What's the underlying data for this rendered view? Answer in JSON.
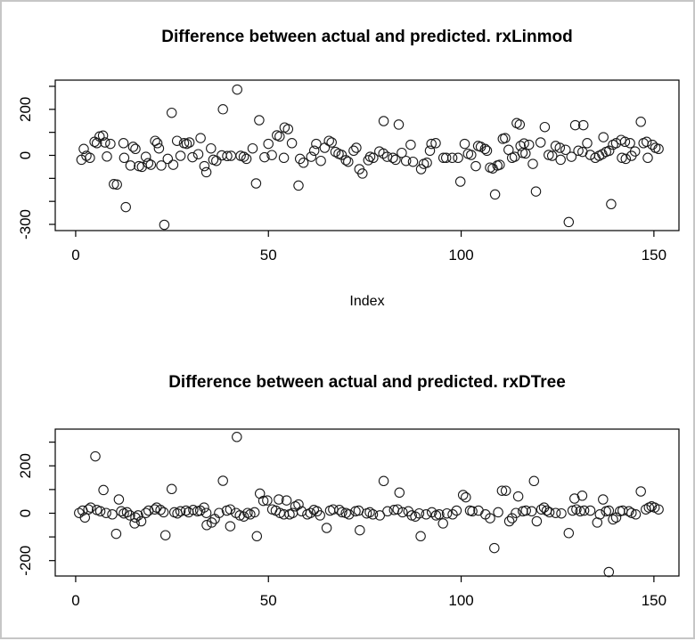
{
  "window": {
    "background": "#ffffff",
    "frame_border_color": "#c6c6c6",
    "ink_color": "#000000"
  },
  "chart_data": [
    {
      "type": "scatter",
      "title": "Difference between actual and predicted. rxLinmod",
      "xlabel": "Index",
      "ylabel": "",
      "marker": "open-circle",
      "grid": false,
      "legend": null,
      "xlim": [
        -5.3,
        156.5
      ],
      "ylim": [
        -327,
        327
      ],
      "x_ticks": [
        0,
        50,
        100,
        150
      ],
      "y_ticks": [
        -300,
        -200,
        -100,
        0,
        100,
        200,
        300
      ],
      "y_tick_labels": [
        {
          "value": 200,
          "label": "200"
        },
        {
          "value": 0,
          "label": "0"
        },
        {
          "value": -300,
          "label": "-300"
        }
      ],
      "points": [
        [
          1.5,
          -19
        ],
        [
          2.1,
          28
        ],
        [
          2.8,
          -2
        ],
        [
          3.7,
          -11
        ],
        [
          4.9,
          59
        ],
        [
          5.5,
          53
        ],
        [
          6.2,
          82
        ],
        [
          7.1,
          86
        ],
        [
          7.6,
          56
        ],
        [
          8.1,
          -5
        ],
        [
          9,
          50
        ],
        [
          9.9,
          -125
        ],
        [
          10.7,
          -127
        ],
        [
          12.4,
          53
        ],
        [
          12.6,
          -11
        ],
        [
          13,
          -225
        ],
        [
          14.2,
          -44
        ],
        [
          14.9,
          37
        ],
        [
          15.5,
          28
        ],
        [
          16.4,
          -47
        ],
        [
          17.2,
          -50
        ],
        [
          18.2,
          -6
        ],
        [
          18.8,
          -34
        ],
        [
          19.5,
          -41
        ],
        [
          20.6,
          63
        ],
        [
          21.2,
          53
        ],
        [
          21.6,
          30
        ],
        [
          22.2,
          -44
        ],
        [
          23,
          -302
        ],
        [
          23.9,
          -15
        ],
        [
          24.9,
          185
        ],
        [
          25.3,
          -41
        ],
        [
          26.3,
          63
        ],
        [
          27.2,
          -2
        ],
        [
          28.1,
          53
        ],
        [
          28.8,
          50
        ],
        [
          29.5,
          56
        ],
        [
          30.3,
          -8
        ],
        [
          31.8,
          5
        ],
        [
          32.4,
          75
        ],
        [
          33.4,
          -47
        ],
        [
          33.9,
          -73
        ],
        [
          35.1,
          30
        ],
        [
          35.7,
          -19
        ],
        [
          36.5,
          -24
        ],
        [
          37.9,
          0
        ],
        [
          38.2,
          200
        ],
        [
          39.3,
          -3
        ],
        [
          40.3,
          -2
        ],
        [
          41.9,
          286
        ],
        [
          42.8,
          -2
        ],
        [
          43.6,
          -6
        ],
        [
          44.3,
          -15
        ],
        [
          45.9,
          30
        ],
        [
          46.8,
          -122
        ],
        [
          47.6,
          153
        ],
        [
          49,
          -8
        ],
        [
          50,
          50
        ],
        [
          50.9,
          1
        ],
        [
          52.2,
          87
        ],
        [
          52.9,
          82
        ],
        [
          54,
          -11
        ],
        [
          54.2,
          121
        ],
        [
          55.1,
          114
        ],
        [
          56.1,
          53
        ],
        [
          57.8,
          -131
        ],
        [
          58.2,
          -15
        ],
        [
          59.1,
          -32
        ],
        [
          61.1,
          -6
        ],
        [
          61.9,
          20
        ],
        [
          62.4,
          50
        ],
        [
          63.6,
          -24
        ],
        [
          64.6,
          33
        ],
        [
          65.7,
          63
        ],
        [
          66.4,
          56
        ],
        [
          67.4,
          15
        ],
        [
          68.2,
          7
        ],
        [
          69,
          2
        ],
        [
          70.1,
          -21
        ],
        [
          70.7,
          -28
        ],
        [
          72.1,
          20
        ],
        [
          72.8,
          33
        ],
        [
          73.6,
          -60
        ],
        [
          74.4,
          -79
        ],
        [
          75.9,
          -21
        ],
        [
          76.4,
          -6
        ],
        [
          77.2,
          -11
        ],
        [
          78.8,
          17
        ],
        [
          79.8,
          8
        ],
        [
          79.9,
          149
        ],
        [
          80.8,
          -6
        ],
        [
          82.3,
          -11
        ],
        [
          83,
          -19
        ],
        [
          83.8,
          134
        ],
        [
          84.6,
          11
        ],
        [
          85.7,
          -24
        ],
        [
          86.9,
          46
        ],
        [
          87.5,
          -28
        ],
        [
          89.6,
          -60
        ],
        [
          90.3,
          -37
        ],
        [
          91.1,
          -32
        ],
        [
          91.9,
          20
        ],
        [
          92.3,
          50
        ],
        [
          93.4,
          53
        ],
        [
          95.4,
          -11
        ],
        [
          96.1,
          -11
        ],
        [
          97.7,
          -11
        ],
        [
          99.2,
          -11
        ],
        [
          99.8,
          -114
        ],
        [
          100.9,
          50
        ],
        [
          101.8,
          7
        ],
        [
          102.6,
          2
        ],
        [
          103.8,
          -47
        ],
        [
          104.4,
          41
        ],
        [
          105.1,
          37
        ],
        [
          106.2,
          28
        ],
        [
          106.7,
          20
        ],
        [
          107.5,
          -53
        ],
        [
          108.2,
          -57
        ],
        [
          108.8,
          -170
        ],
        [
          109.4,
          -44
        ],
        [
          110,
          -41
        ],
        [
          110.8,
          72
        ],
        [
          111.4,
          75
        ],
        [
          112.3,
          24
        ],
        [
          113.2,
          -11
        ],
        [
          113.9,
          -6
        ],
        [
          114.4,
          140
        ],
        [
          115.2,
          134
        ],
        [
          115.4,
          41
        ],
        [
          115.9,
          11
        ],
        [
          116.3,
          52
        ],
        [
          116.7,
          8
        ],
        [
          117.6,
          46
        ],
        [
          118.6,
          -37
        ],
        [
          119.4,
          -157
        ],
        [
          120.6,
          56
        ],
        [
          121.7,
          123
        ],
        [
          122.7,
          2
        ],
        [
          123.6,
          -2
        ],
        [
          124.5,
          41
        ],
        [
          125.6,
          33
        ],
        [
          125.8,
          -19
        ],
        [
          127.1,
          24
        ],
        [
          127.9,
          -290
        ],
        [
          128.6,
          -6
        ],
        [
          129.6,
          131
        ],
        [
          130.4,
          20
        ],
        [
          131.5,
          15
        ],
        [
          131.7,
          131
        ],
        [
          132.7,
          53
        ],
        [
          133.5,
          2
        ],
        [
          134.8,
          -11
        ],
        [
          135.8,
          -2
        ],
        [
          136.6,
          5
        ],
        [
          136.9,
          79
        ],
        [
          137.6,
          15
        ],
        [
          138.4,
          20
        ],
        [
          138.9,
          -212
        ],
        [
          139.4,
          46
        ],
        [
          140.2,
          53
        ],
        [
          141.5,
          67
        ],
        [
          141.7,
          -11
        ],
        [
          142.5,
          59
        ],
        [
          142.7,
          -15
        ],
        [
          143.8,
          53
        ],
        [
          144.2,
          -2
        ],
        [
          145.1,
          17
        ],
        [
          146.6,
          146
        ],
        [
          147.3,
          53
        ],
        [
          148.1,
          59
        ],
        [
          148.4,
          -11
        ],
        [
          149.6,
          46
        ],
        [
          150.4,
          33
        ],
        [
          151.2,
          28
        ]
      ]
    },
    {
      "type": "scatter",
      "title": "Difference between actual and predicted. rxDTree",
      "xlabel": "",
      "ylabel": "",
      "marker": "open-circle",
      "grid": false,
      "legend": null,
      "xlim": [
        -5.3,
        156.5
      ],
      "ylim": [
        -265,
        355
      ],
      "x_ticks": [
        0,
        50,
        100,
        150
      ],
      "y_ticks": [
        -200,
        -100,
        0,
        100,
        200,
        300
      ],
      "y_tick_labels": [
        {
          "value": 200,
          "label": "200"
        },
        {
          "value": 0,
          "label": "0"
        },
        {
          "value": -200,
          "label": "-200"
        }
      ],
      "points": [
        [
          0.9,
          1
        ],
        [
          1.8,
          11
        ],
        [
          2.4,
          -18
        ],
        [
          3.3,
          16
        ],
        [
          3.9,
          24
        ],
        [
          5.1,
          240
        ],
        [
          5.5,
          14
        ],
        [
          6.4,
          8
        ],
        [
          7.2,
          98
        ],
        [
          7.9,
          1
        ],
        [
          9.5,
          -5
        ],
        [
          10.5,
          -87
        ],
        [
          11.2,
          58
        ],
        [
          11.8,
          8
        ],
        [
          12.5,
          -1
        ],
        [
          13.3,
          4
        ],
        [
          14.1,
          -9
        ],
        [
          15.3,
          -43
        ],
        [
          15.5,
          -18
        ],
        [
          16.2,
          -9
        ],
        [
          17,
          -34
        ],
        [
          18.2,
          1
        ],
        [
          18.9,
          11
        ],
        [
          20.5,
          16
        ],
        [
          21,
          24
        ],
        [
          22,
          14
        ],
        [
          22.8,
          4
        ],
        [
          23.3,
          -93
        ],
        [
          24.9,
          102
        ],
        [
          25.6,
          4
        ],
        [
          26.4,
          -1
        ],
        [
          27.2,
          8
        ],
        [
          28.6,
          11
        ],
        [
          29.3,
          4
        ],
        [
          30.5,
          14
        ],
        [
          31.6,
          8
        ],
        [
          32.3,
          11
        ],
        [
          33.3,
          24
        ],
        [
          33.9,
          1
        ],
        [
          34,
          -50
        ],
        [
          35.3,
          -39
        ],
        [
          36.1,
          -24
        ],
        [
          37.2,
          1
        ],
        [
          38.2,
          137
        ],
        [
          39.2,
          11
        ],
        [
          40.1,
          16
        ],
        [
          40.1,
          -55
        ],
        [
          41.6,
          1
        ],
        [
          41.8,
          322
        ],
        [
          42.6,
          -9
        ],
        [
          43.6,
          -14
        ],
        [
          44.6,
          1
        ],
        [
          45.3,
          -5
        ],
        [
          46.4,
          4
        ],
        [
          47,
          -97
        ],
        [
          47.8,
          83
        ],
        [
          48.7,
          52
        ],
        [
          49.7,
          54
        ],
        [
          51,
          16
        ],
        [
          51.9,
          11
        ],
        [
          52.7,
          58
        ],
        [
          53,
          1
        ],
        [
          54,
          -5
        ],
        [
          54.7,
          54
        ],
        [
          55.5,
          -5
        ],
        [
          56.3,
          1
        ],
        [
          57,
          29
        ],
        [
          57.8,
          37
        ],
        [
          58.6,
          8
        ],
        [
          60.1,
          -5
        ],
        [
          60.9,
          1
        ],
        [
          61.8,
          14
        ],
        [
          62.6,
          8
        ],
        [
          63.4,
          -9
        ],
        [
          65.1,
          -62
        ],
        [
          66,
          11
        ],
        [
          66.8,
          16
        ],
        [
          68.4,
          14
        ],
        [
          69.1,
          4
        ],
        [
          70.1,
          1
        ],
        [
          70.9,
          -5
        ],
        [
          72.6,
          8
        ],
        [
          73.4,
          11
        ],
        [
          73.7,
          -72
        ],
        [
          75.5,
          -1
        ],
        [
          76.3,
          4
        ],
        [
          77.1,
          -5
        ],
        [
          78.9,
          -9
        ],
        [
          79.9,
          136
        ],
        [
          80.9,
          8
        ],
        [
          82.6,
          14
        ],
        [
          83.5,
          16
        ],
        [
          84,
          87
        ],
        [
          84.8,
          4
        ],
        [
          86.3,
          8
        ],
        [
          87.2,
          -9
        ],
        [
          88.1,
          -14
        ],
        [
          89.1,
          -1
        ],
        [
          89.5,
          -97
        ],
        [
          90.9,
          -5
        ],
        [
          92.4,
          4
        ],
        [
          93.5,
          -9
        ],
        [
          94.3,
          -5
        ],
        [
          95.3,
          -43
        ],
        [
          96.3,
          -1
        ],
        [
          97.8,
          -5
        ],
        [
          98.8,
          11
        ],
        [
          100.5,
          77
        ],
        [
          101.2,
          67
        ],
        [
          102.3,
          11
        ],
        [
          102.9,
          8
        ],
        [
          104.5,
          11
        ],
        [
          106.3,
          -5
        ],
        [
          107.5,
          -21
        ],
        [
          108.6,
          -147
        ],
        [
          109.6,
          4
        ],
        [
          110.6,
          95
        ],
        [
          111.6,
          95
        ],
        [
          112.5,
          -34
        ],
        [
          113.2,
          -21
        ],
        [
          114.2,
          1
        ],
        [
          114.8,
          71
        ],
        [
          116,
          8
        ],
        [
          116.8,
          11
        ],
        [
          118.3,
          8
        ],
        [
          118.9,
          136
        ],
        [
          119.6,
          -34
        ],
        [
          120.8,
          16
        ],
        [
          121.5,
          24
        ],
        [
          122.2,
          11
        ],
        [
          122.9,
          4
        ],
        [
          124.5,
          1
        ],
        [
          126,
          -1
        ],
        [
          127.9,
          -84
        ],
        [
          128.9,
          11
        ],
        [
          129.4,
          62
        ],
        [
          129.9,
          16
        ],
        [
          130.9,
          8
        ],
        [
          131.4,
          74
        ],
        [
          131.9,
          11
        ],
        [
          133.5,
          11
        ],
        [
          135.3,
          -39
        ],
        [
          136,
          -5
        ],
        [
          136.8,
          58
        ],
        [
          137.6,
          8
        ],
        [
          138.3,
          11
        ],
        [
          138.3,
          -248
        ],
        [
          139.4,
          -26
        ],
        [
          140.2,
          -18
        ],
        [
          141.2,
          8
        ],
        [
          141.9,
          11
        ],
        [
          143.5,
          8
        ],
        [
          144.2,
          1
        ],
        [
          145.3,
          -5
        ],
        [
          146.6,
          92
        ],
        [
          147.9,
          16
        ],
        [
          148.7,
          24
        ],
        [
          149.4,
          29
        ],
        [
          150.2,
          24
        ],
        [
          151.2,
          16
        ]
      ]
    }
  ]
}
